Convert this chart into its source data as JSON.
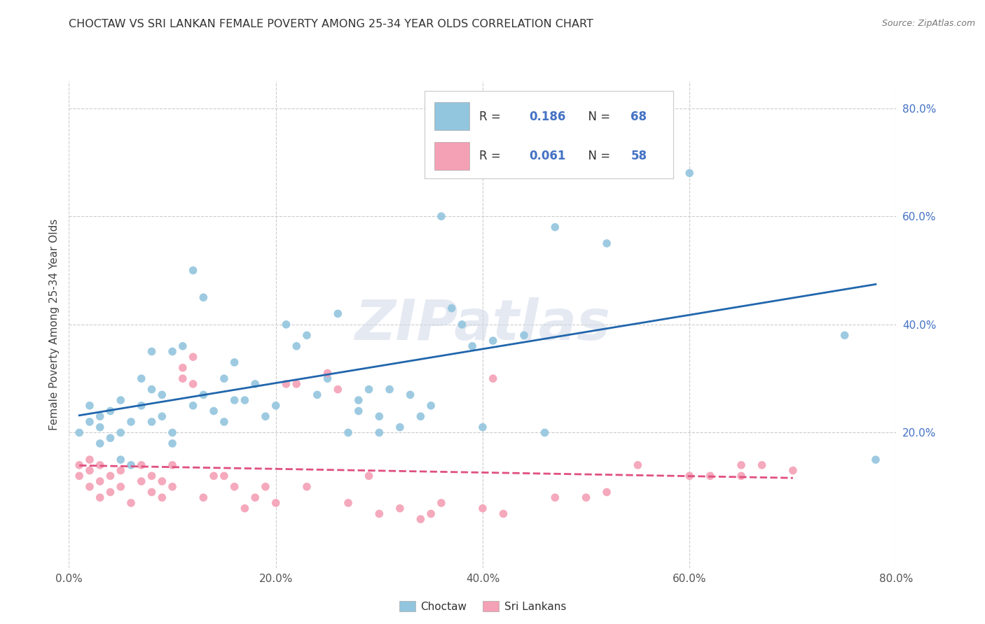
{
  "title": "CHOCTAW VS SRI LANKAN FEMALE POVERTY AMONG 25-34 YEAR OLDS CORRELATION CHART",
  "source": "Source: ZipAtlas.com",
  "ylabel": "Female Poverty Among 25-34 Year Olds",
  "xlim": [
    0.0,
    0.8
  ],
  "ylim": [
    -0.05,
    0.85
  ],
  "xticks": [
    0.0,
    0.2,
    0.4,
    0.6,
    0.8
  ],
  "xticklabels": [
    "0.0%",
    "20.0%",
    "40.0%",
    "60.0%",
    "80.0%"
  ],
  "yticks_right": [
    0.2,
    0.4,
    0.6,
    0.8
  ],
  "yticklabels_right": [
    "20.0%",
    "40.0%",
    "60.0%",
    "80.0%"
  ],
  "choctaw_color": "#92c5de",
  "sri_lankan_color": "#f4a0b5",
  "choctaw_line_color": "#2166ac",
  "sri_line_color": "#e05080",
  "choctaw_R": "0.186",
  "choctaw_N": "68",
  "sri_lankan_R": "0.061",
  "sri_lankan_N": "58",
  "legend_label_choctaw": "Choctaw",
  "legend_label_sri": "Sri Lankans",
  "watermark": "ZIPatlas",
  "background_color": "#ffffff",
  "label_color": "#4472c4",
  "grid_color": "#cccccc",
  "choctaw_x": [
    0.01,
    0.02,
    0.02,
    0.03,
    0.03,
    0.03,
    0.04,
    0.04,
    0.05,
    0.05,
    0.05,
    0.06,
    0.06,
    0.07,
    0.07,
    0.08,
    0.08,
    0.08,
    0.09,
    0.09,
    0.1,
    0.1,
    0.1,
    0.11,
    0.12,
    0.12,
    0.13,
    0.13,
    0.14,
    0.15,
    0.15,
    0.16,
    0.16,
    0.17,
    0.18,
    0.19,
    0.2,
    0.21,
    0.22,
    0.23,
    0.24,
    0.25,
    0.26,
    0.27,
    0.28,
    0.28,
    0.29,
    0.3,
    0.3,
    0.31,
    0.32,
    0.33,
    0.34,
    0.35,
    0.36,
    0.37,
    0.38,
    0.39,
    0.4,
    0.41,
    0.44,
    0.46,
    0.47,
    0.5,
    0.52,
    0.6,
    0.75,
    0.78
  ],
  "choctaw_y": [
    0.2,
    0.22,
    0.25,
    0.18,
    0.21,
    0.23,
    0.19,
    0.24,
    0.15,
    0.2,
    0.26,
    0.14,
    0.22,
    0.25,
    0.3,
    0.22,
    0.28,
    0.35,
    0.23,
    0.27,
    0.18,
    0.2,
    0.35,
    0.36,
    0.25,
    0.5,
    0.27,
    0.45,
    0.24,
    0.22,
    0.3,
    0.26,
    0.33,
    0.26,
    0.29,
    0.23,
    0.25,
    0.4,
    0.36,
    0.38,
    0.27,
    0.3,
    0.42,
    0.2,
    0.24,
    0.26,
    0.28,
    0.2,
    0.23,
    0.28,
    0.21,
    0.27,
    0.23,
    0.25,
    0.6,
    0.43,
    0.4,
    0.36,
    0.21,
    0.37,
    0.38,
    0.2,
    0.58,
    0.7,
    0.55,
    0.68,
    0.38,
    0.15
  ],
  "sri_x": [
    0.01,
    0.01,
    0.02,
    0.02,
    0.02,
    0.03,
    0.03,
    0.03,
    0.04,
    0.04,
    0.05,
    0.05,
    0.06,
    0.07,
    0.07,
    0.08,
    0.08,
    0.09,
    0.09,
    0.1,
    0.1,
    0.11,
    0.11,
    0.12,
    0.12,
    0.13,
    0.14,
    0.15,
    0.16,
    0.17,
    0.18,
    0.19,
    0.2,
    0.21,
    0.22,
    0.23,
    0.25,
    0.26,
    0.27,
    0.29,
    0.3,
    0.32,
    0.34,
    0.35,
    0.36,
    0.4,
    0.41,
    0.42,
    0.47,
    0.5,
    0.52,
    0.55,
    0.6,
    0.62,
    0.65,
    0.65,
    0.67,
    0.7
  ],
  "sri_y": [
    0.12,
    0.14,
    0.1,
    0.13,
    0.15,
    0.08,
    0.11,
    0.14,
    0.09,
    0.12,
    0.1,
    0.13,
    0.07,
    0.11,
    0.14,
    0.09,
    0.12,
    0.08,
    0.11,
    0.1,
    0.14,
    0.3,
    0.32,
    0.29,
    0.34,
    0.08,
    0.12,
    0.12,
    0.1,
    0.06,
    0.08,
    0.1,
    0.07,
    0.29,
    0.29,
    0.1,
    0.31,
    0.28,
    0.07,
    0.12,
    0.05,
    0.06,
    0.04,
    0.05,
    0.07,
    0.06,
    0.3,
    0.05,
    0.08,
    0.08,
    0.09,
    0.14,
    0.12,
    0.12,
    0.12,
    0.14,
    0.14,
    0.13
  ]
}
